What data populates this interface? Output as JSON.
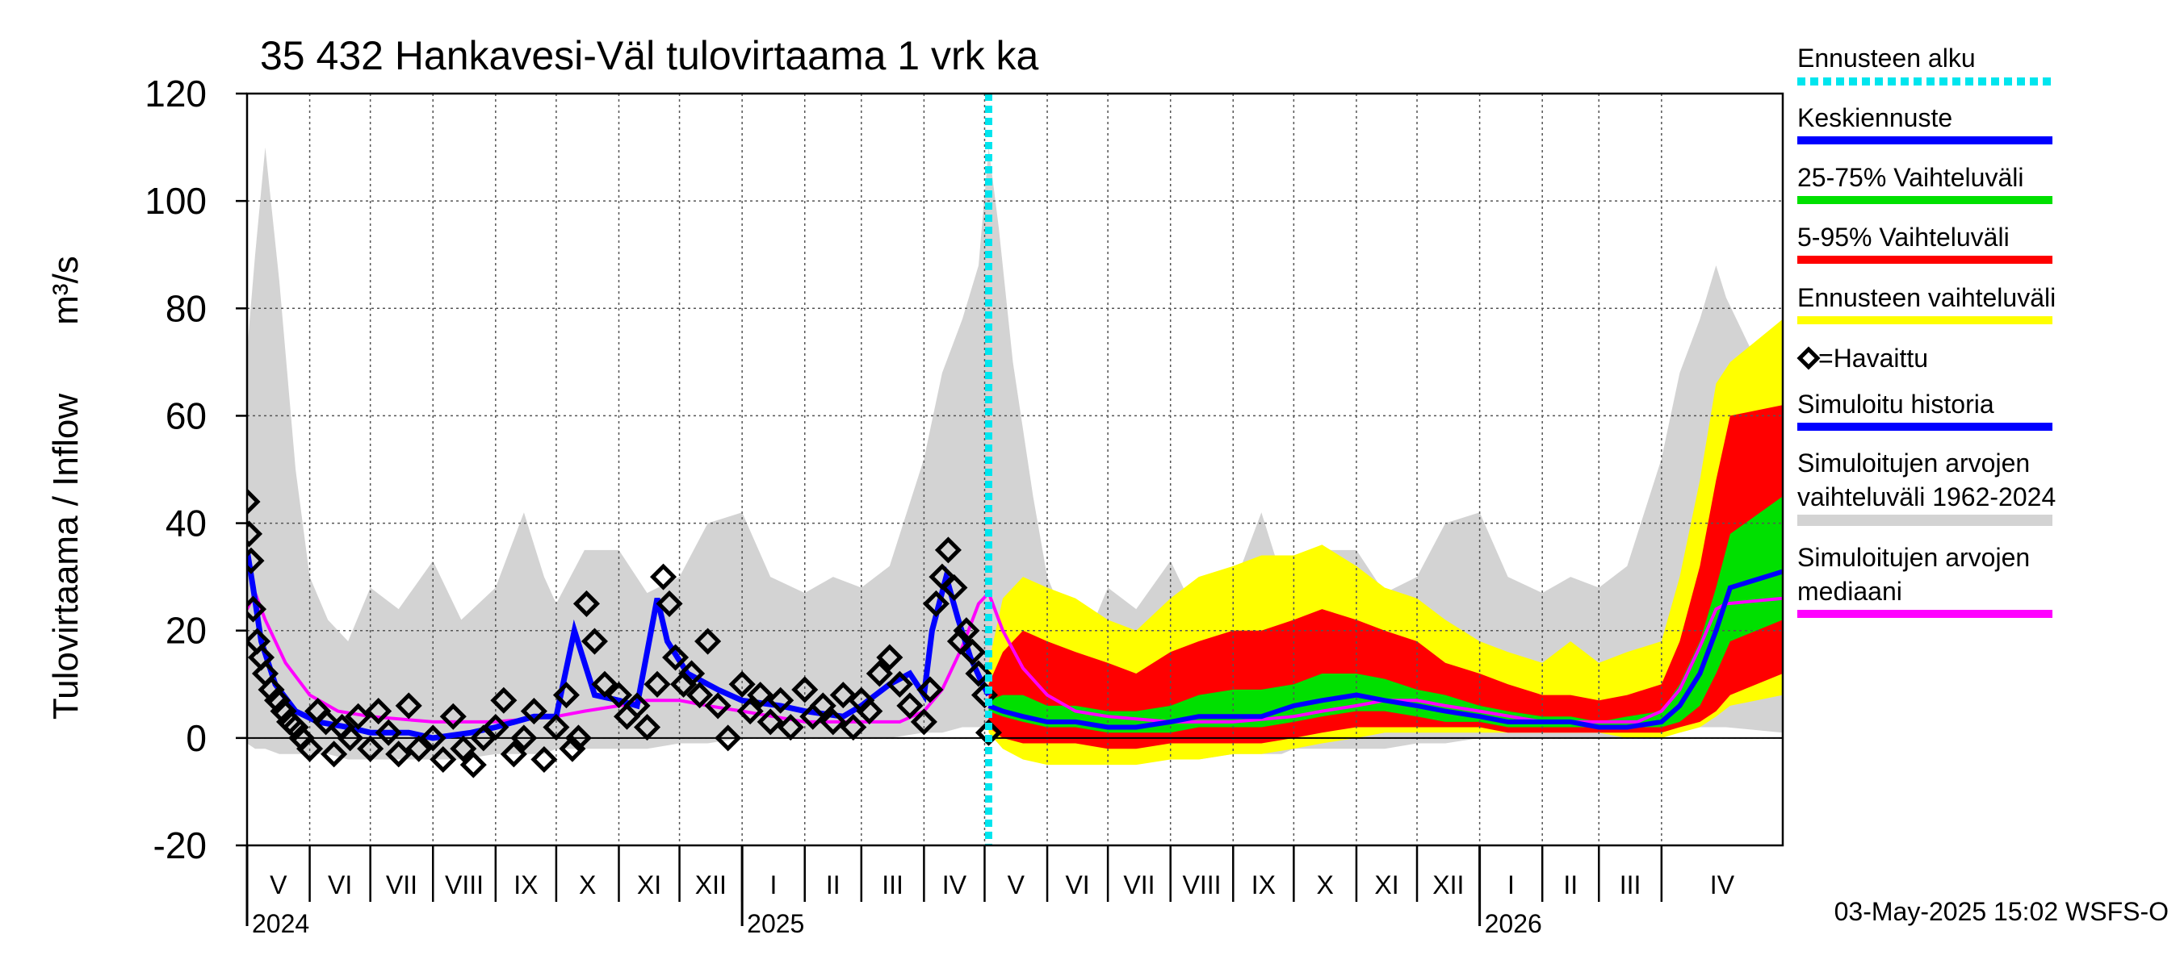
{
  "chart_data": {
    "type": "line",
    "title": "35 432 Hankavesi-Väl tulovirtaama 1 vrk ka",
    "ylabel_left": "Tulovirtaama / Inflow",
    "ylabel_unit": "m³/s",
    "ylim": [
      -20,
      120
    ],
    "yticks": [
      -20,
      0,
      20,
      40,
      60,
      80,
      100,
      120
    ],
    "grid": true,
    "legend_position": "right",
    "x_start": "2024-05-01",
    "x_end": "2026-05-31",
    "forecast_start": "2025-05-03",
    "month_labels": [
      {
        "label": "V",
        "date": "2024-05-01"
      },
      {
        "label": "VI",
        "date": "2024-06-01"
      },
      {
        "label": "VII",
        "date": "2024-07-01"
      },
      {
        "label": "VIII",
        "date": "2024-08-01"
      },
      {
        "label": "IX",
        "date": "2024-09-01"
      },
      {
        "label": "X",
        "date": "2024-10-01"
      },
      {
        "label": "XI",
        "date": "2024-11-01"
      },
      {
        "label": "XII",
        "date": "2024-12-01"
      },
      {
        "label": "I",
        "date": "2025-01-01"
      },
      {
        "label": "II",
        "date": "2025-02-01"
      },
      {
        "label": "III",
        "date": "2025-03-01"
      },
      {
        "label": "IV",
        "date": "2025-04-01"
      },
      {
        "label": "V",
        "date": "2025-05-01"
      },
      {
        "label": "VI",
        "date": "2025-06-01"
      },
      {
        "label": "VII",
        "date": "2025-07-01"
      },
      {
        "label": "VIII",
        "date": "2025-08-01"
      },
      {
        "label": "IX",
        "date": "2025-09-01"
      },
      {
        "label": "X",
        "date": "2025-10-01"
      },
      {
        "label": "XI",
        "date": "2025-11-01"
      },
      {
        "label": "XII",
        "date": "2025-12-01"
      },
      {
        "label": "I",
        "date": "2026-01-01"
      },
      {
        "label": "II",
        "date": "2026-02-01"
      },
      {
        "label": "III",
        "date": "2026-03-01"
      },
      {
        "label": "IV",
        "date": "2026-04-01"
      }
    ],
    "year_labels": [
      {
        "label": "2024",
        "date": "2024-05-01"
      },
      {
        "label": "2025",
        "date": "2025-01-01"
      },
      {
        "label": "2026",
        "date": "2026-01-01"
      }
    ],
    "legend": [
      {
        "label": "Ennusteen alku",
        "color": "#00e5ee",
        "style": "dotted"
      },
      {
        "label": "Keskiennuste",
        "color": "#0000ff",
        "style": "line"
      },
      {
        "label": "25-75% Vaihteluväli",
        "color": "#00e000",
        "style": "line"
      },
      {
        "label": "5-95% Vaihteluväli",
        "color": "#ff0000",
        "style": "line"
      },
      {
        "label": "Ennusteen vaihteluväli",
        "color": "#ffff00",
        "style": "line"
      },
      {
        "label": "=Havaittu",
        "color": "#000000",
        "style": "marker"
      },
      {
        "label": "Simuloitu historia",
        "color": "#0000ff",
        "style": "line"
      },
      {
        "label": "Simuloitujen arvojen\nvaihteluväli 1962-2024",
        "color": "#d3d3d3",
        "style": "line"
      },
      {
        "label": "Simuloitujen arvojen\nmediaani",
        "color": "#ff00ff",
        "style": "line"
      }
    ],
    "hist_band": {
      "name": "Simuloitujen arvojen vaihteluväli 1962-2024",
      "x": [
        "2024-05-01",
        "2024-05-05",
        "2024-05-10",
        "2024-05-17",
        "2024-05-25",
        "2024-06-01",
        "2024-06-10",
        "2024-06-20",
        "2024-07-01",
        "2024-07-15",
        "2024-08-01",
        "2024-08-15",
        "2024-09-01",
        "2024-09-15",
        "2024-09-25",
        "2024-10-01",
        "2024-10-15",
        "2024-11-01",
        "2024-11-15",
        "2024-12-01",
        "2024-12-15",
        "2025-01-01",
        "2025-01-15",
        "2025-02-01",
        "2025-02-15",
        "2025-03-01",
        "2025-03-15",
        "2025-04-01",
        "2025-04-10",
        "2025-04-20",
        "2025-04-28",
        "2025-05-03",
        "2025-05-08",
        "2025-05-15",
        "2025-05-25",
        "2025-06-01",
        "2025-06-10",
        "2025-06-20",
        "2025-07-01",
        "2025-07-15",
        "2025-08-01",
        "2025-08-15",
        "2025-09-01",
        "2025-09-15",
        "2025-09-25",
        "2025-10-01",
        "2025-10-15",
        "2025-11-01",
        "2025-11-15",
        "2025-12-01",
        "2025-12-15",
        "2026-01-01",
        "2026-01-15",
        "2026-02-01",
        "2026-02-15",
        "2026-03-01",
        "2026-03-15",
        "2026-04-01",
        "2026-04-10",
        "2026-04-20",
        "2026-04-28",
        "2026-05-03",
        "2026-05-31"
      ],
      "upper": [
        72,
        90,
        110,
        85,
        50,
        30,
        22,
        18,
        28,
        24,
        33,
        22,
        28,
        42,
        30,
        25,
        35,
        35,
        27,
        30,
        40,
        42,
        30,
        27,
        30,
        28,
        32,
        52,
        68,
        78,
        88,
        110,
        95,
        70,
        45,
        30,
        22,
        18,
        28,
        24,
        33,
        22,
        28,
        42,
        30,
        25,
        35,
        35,
        27,
        30,
        40,
        42,
        30,
        27,
        30,
        28,
        32,
        52,
        68,
        78,
        88,
        82,
        60
      ],
      "lower": [
        -1,
        -2,
        -2,
        -3,
        -3,
        -3,
        -3,
        -4,
        -4,
        -4,
        -4,
        -4,
        -3,
        -3,
        -3,
        -2,
        -2,
        -2,
        -2,
        -1,
        -1,
        0,
        0,
        0,
        0,
        0,
        0,
        1,
        1,
        2,
        2,
        2,
        0,
        -2,
        -3,
        -3,
        -3,
        -4,
        -4,
        -4,
        -4,
        -4,
        -3,
        -3,
        -3,
        -2,
        -2,
        -2,
        -2,
        -1,
        -1,
        0,
        0,
        0,
        0,
        0,
        0,
        1,
        1,
        2,
        2,
        2,
        1
      ]
    },
    "median": {
      "name": "Simuloitujen arvojen mediaani",
      "x": [
        "2024-05-01",
        "2024-05-05",
        "2024-05-10",
        "2024-05-20",
        "2024-06-01",
        "2024-06-15",
        "2024-07-01",
        "2024-08-01",
        "2024-09-01",
        "2024-10-01",
        "2024-10-15",
        "2024-11-01",
        "2024-11-15",
        "2024-12-01",
        "2024-12-15",
        "2025-01-01",
        "2025-02-01",
        "2025-03-01",
        "2025-03-20",
        "2025-04-01",
        "2025-04-10",
        "2025-04-20",
        "2025-04-28",
        "2025-05-03",
        "2025-05-10",
        "2025-05-20",
        "2025-06-01",
        "2025-06-15",
        "2025-07-01",
        "2025-08-01",
        "2025-09-01",
        "2025-10-01",
        "2025-10-15",
        "2025-11-01",
        "2025-11-15",
        "2025-12-01",
        "2025-12-15",
        "2026-01-01",
        "2026-02-01",
        "2026-03-01",
        "2026-03-20",
        "2026-04-01",
        "2026-04-10",
        "2026-04-20",
        "2026-04-28",
        "2026-05-03",
        "2026-05-31"
      ],
      "values": [
        24,
        27,
        22,
        14,
        8,
        5,
        4,
        3,
        3,
        4,
        5,
        6,
        7,
        7,
        6,
        5,
        3,
        3,
        3,
        5,
        9,
        17,
        25,
        27,
        20,
        13,
        8,
        5,
        4,
        3,
        3,
        4,
        5,
        6,
        7,
        7,
        6,
        5,
        3,
        3,
        3,
        5,
        9,
        17,
        24,
        25,
        26
      ]
    },
    "simulated_history": {
      "name": "Simuloitu historia",
      "x": [
        "2024-05-01",
        "2024-05-04",
        "2024-05-08",
        "2024-05-15",
        "2024-05-25",
        "2024-06-05",
        "2024-06-20",
        "2024-07-01",
        "2024-07-20",
        "2024-08-01",
        "2024-08-20",
        "2024-09-01",
        "2024-09-20",
        "2024-10-01",
        "2024-10-10",
        "2024-10-20",
        "2024-11-01",
        "2024-11-10",
        "2024-11-20",
        "2024-11-25",
        "2024-12-05",
        "2024-12-20",
        "2025-01-01",
        "2025-01-20",
        "2025-02-01",
        "2025-02-20",
        "2025-03-01",
        "2025-03-15",
        "2025-03-25",
        "2025-04-01",
        "2025-04-05",
        "2025-04-12",
        "2025-04-18",
        "2025-04-24",
        "2025-04-30",
        "2025-05-03"
      ],
      "values": [
        35,
        28,
        18,
        10,
        5,
        3,
        2,
        1,
        1,
        0,
        1,
        2,
        4,
        4,
        20,
        8,
        7,
        6,
        26,
        18,
        12,
        9,
        7,
        6,
        5,
        4,
        6,
        10,
        12,
        8,
        20,
        30,
        22,
        15,
        10,
        8
      ]
    },
    "observed": {
      "name": "=Havaittu",
      "x": [
        "2024-05-01",
        "2024-05-02",
        "2024-05-03",
        "2024-05-04",
        "2024-05-06",
        "2024-05-08",
        "2024-05-10",
        "2024-05-13",
        "2024-05-16",
        "2024-05-19",
        "2024-05-22",
        "2024-05-25",
        "2024-05-28",
        "2024-06-01",
        "2024-06-05",
        "2024-06-09",
        "2024-06-13",
        "2024-06-17",
        "2024-06-21",
        "2024-06-25",
        "2024-07-01",
        "2024-07-05",
        "2024-07-10",
        "2024-07-15",
        "2024-07-20",
        "2024-07-25",
        "2024-08-01",
        "2024-08-06",
        "2024-08-11",
        "2024-08-16",
        "2024-08-21",
        "2024-08-26",
        "2024-09-01",
        "2024-09-05",
        "2024-09-10",
        "2024-09-15",
        "2024-09-20",
        "2024-09-25",
        "2024-10-01",
        "2024-10-06",
        "2024-10-09",
        "2024-10-12",
        "2024-10-16",
        "2024-10-20",
        "2024-10-25",
        "2024-11-01",
        "2024-11-05",
        "2024-11-10",
        "2024-11-15",
        "2024-11-20",
        "2024-11-23",
        "2024-11-26",
        "2024-11-29",
        "2024-12-03",
        "2024-12-07",
        "2024-12-11",
        "2024-12-15",
        "2024-12-20",
        "2024-12-25",
        "2025-01-01",
        "2025-01-05",
        "2025-01-10",
        "2025-01-15",
        "2025-01-20",
        "2025-01-25",
        "2025-02-01",
        "2025-02-05",
        "2025-02-10",
        "2025-02-15",
        "2025-02-20",
        "2025-02-25",
        "2025-03-01",
        "2025-03-05",
        "2025-03-10",
        "2025-03-15",
        "2025-03-20",
        "2025-03-25",
        "2025-04-01",
        "2025-04-04",
        "2025-04-07",
        "2025-04-10",
        "2025-04-13",
        "2025-04-16",
        "2025-04-19",
        "2025-04-22",
        "2025-04-25",
        "2025-04-28",
        "2025-05-01",
        "2025-05-03"
      ],
      "values": [
        44,
        38,
        33,
        24,
        18,
        15,
        12,
        9,
        7,
        5,
        3,
        2,
        0,
        -2,
        5,
        3,
        -3,
        2,
        0,
        4,
        -2,
        5,
        1,
        -3,
        6,
        -2,
        0,
        -4,
        4,
        -2,
        -5,
        0,
        2,
        7,
        -3,
        0,
        5,
        -4,
        2,
        8,
        -2,
        0,
        25,
        18,
        10,
        8,
        4,
        6,
        2,
        10,
        30,
        25,
        15,
        10,
        12,
        8,
        18,
        6,
        0,
        10,
        5,
        8,
        3,
        7,
        2,
        9,
        4,
        6,
        3,
        8,
        2,
        7,
        5,
        12,
        15,
        10,
        6,
        3,
        9,
        25,
        30,
        35,
        28,
        18,
        20,
        16,
        12,
        8,
        1
      ]
    },
    "forecast": {
      "x": [
        "2025-05-03",
        "2025-05-10",
        "2025-05-20",
        "2025-06-01",
        "2025-06-15",
        "2025-07-01",
        "2025-07-15",
        "2025-08-01",
        "2025-08-15",
        "2025-09-01",
        "2025-09-15",
        "2025-10-01",
        "2025-10-15",
        "2025-11-01",
        "2025-11-15",
        "2025-12-01",
        "2025-12-15",
        "2026-01-01",
        "2026-01-15",
        "2026-02-01",
        "2026-02-15",
        "2026-03-01",
        "2026-03-15",
        "2026-04-01",
        "2026-04-10",
        "2026-04-20",
        "2026-04-28",
        "2026-05-05",
        "2026-05-31"
      ],
      "keskiennuste": [
        6,
        5,
        4,
        3,
        3,
        2,
        2,
        3,
        4,
        4,
        4,
        6,
        7,
        8,
        7,
        6,
        5,
        4,
        3,
        3,
        3,
        2,
        2,
        3,
        6,
        12,
        20,
        28,
        31
      ],
      "p25": [
        5,
        4,
        3,
        2,
        2,
        1,
        1,
        1,
        2,
        2,
        2,
        3,
        4,
        5,
        5,
        4,
        3,
        3,
        2,
        2,
        2,
        2,
        2,
        2,
        3,
        6,
        12,
        18,
        22
      ],
      "p75": [
        7,
        8,
        8,
        6,
        6,
        5,
        5,
        6,
        8,
        9,
        9,
        10,
        12,
        12,
        11,
        9,
        8,
        6,
        5,
        4,
        4,
        3,
        4,
        5,
        10,
        18,
        28,
        38,
        45
      ],
      "p5": [
        2,
        0,
        -1,
        -1,
        -1,
        -2,
        -2,
        -1,
        -1,
        -1,
        -1,
        0,
        1,
        2,
        2,
        2,
        2,
        2,
        1,
        1,
        1,
        1,
        1,
        1,
        2,
        3,
        5,
        8,
        12
      ],
      "p95": [
        10,
        16,
        20,
        18,
        16,
        14,
        12,
        16,
        18,
        20,
        20,
        22,
        24,
        22,
        20,
        18,
        14,
        12,
        10,
        8,
        8,
        7,
        8,
        10,
        18,
        32,
        48,
        60,
        62
      ],
      "min": [
        1,
        -2,
        -4,
        -5,
        -5,
        -5,
        -5,
        -4,
        -4,
        -3,
        -3,
        -2,
        -1,
        0,
        1,
        1,
        1,
        1,
        1,
        1,
        1,
        1,
        0,
        0,
        1,
        2,
        4,
        6,
        8
      ],
      "max": [
        14,
        26,
        30,
        28,
        26,
        22,
        20,
        26,
        30,
        32,
        34,
        34,
        36,
        32,
        28,
        26,
        22,
        18,
        16,
        14,
        18,
        14,
        16,
        18,
        30,
        48,
        66,
        70,
        78
      ]
    }
  },
  "footer": {
    "timestamp": "03-May-2025 15:02 WSFS-O"
  }
}
